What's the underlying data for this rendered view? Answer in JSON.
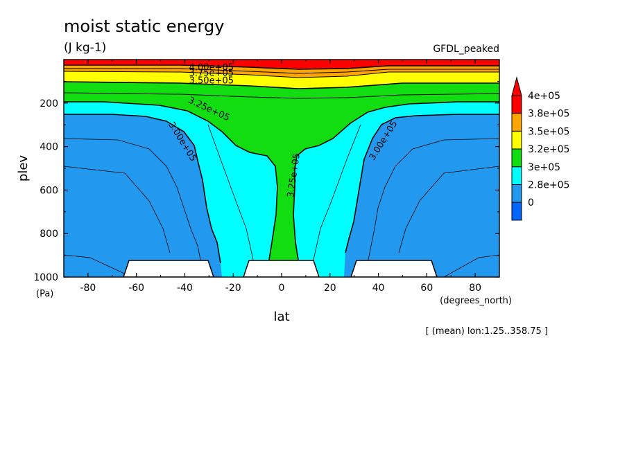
{
  "chart_data": {
    "type": "heatmap",
    "title": "moist static energy",
    "units": "(J kg-1)",
    "dataset": "GFDL_peaked",
    "xlabel": "lat",
    "xunits": "(degrees_north)",
    "ylabel": "plev",
    "yunits": "(Pa)",
    "note": "[ (mean) lon:1.25..358.75 ]",
    "xlim": [
      -90,
      90
    ],
    "ylim": [
      1000,
      0
    ],
    "y_reversed": true,
    "xticks": [
      -80,
      -60,
      -40,
      -20,
      0,
      20,
      40,
      60,
      80
    ],
    "yticks": [
      200,
      400,
      600,
      800,
      1000
    ],
    "colorbar": {
      "levels": [
        "4e+05",
        "3.8e+05",
        "3.5e+05",
        "3.2e+05",
        "3e+05",
        "2.8e+05",
        "0"
      ],
      "colors": [
        "#ff0000",
        "#ffa500",
        "#ffff00",
        "#11dd11",
        "#00ffff",
        "#2299ee",
        "#0066ff"
      ],
      "triangle_color": "#ff0000"
    },
    "contour_labels": [
      {
        "text": "4.00e+05",
        "x": -29,
        "y": 50,
        "angle": 0
      },
      {
        "text": "3.75e+05",
        "x": -29,
        "y": 75,
        "angle": 0
      },
      {
        "text": "3.50e+05",
        "x": -29,
        "y": 110,
        "angle": 0
      },
      {
        "text": "3.25e+05",
        "x": -30,
        "y": 240,
        "angle": 25
      },
      {
        "text": "3.00e+05",
        "x": -41,
        "y": 390,
        "angle": 58
      },
      {
        "text": "3.25e+05",
        "x": 5,
        "y": 545,
        "angle": -82
      },
      {
        "text": "3.00e+05",
        "x": 42,
        "y": 385,
        "angle": -58
      }
    ],
    "regions": [
      {
        "name": "3.00e+05 to 3.25e+05 (light blue)",
        "bounds": "lat -90..90, plev ~180..1000"
      },
      {
        "name": "3.25e+05 to 3.50e+05 (green)",
        "bounds": "tropical tongue reaching ~950 near equator"
      },
      {
        "name": "below 3.00e+05 (blue)",
        "bounds": "extratropical lower troposphere, |lat| > ~30"
      },
      {
        "name": "above 3.50e+05 (yellow/orange/red)",
        "bounds": "upper levels plev < ~120"
      }
    ],
    "masked": [
      {
        "x": [
          -65,
          -30
        ],
        "plev": [
          920,
          1000
        ]
      },
      {
        "x": [
          -14,
          15
        ],
        "plev": [
          920,
          1000
        ]
      },
      {
        "x": [
          29,
          63
        ],
        "plev": [
          920,
          1000
        ]
      }
    ]
  }
}
